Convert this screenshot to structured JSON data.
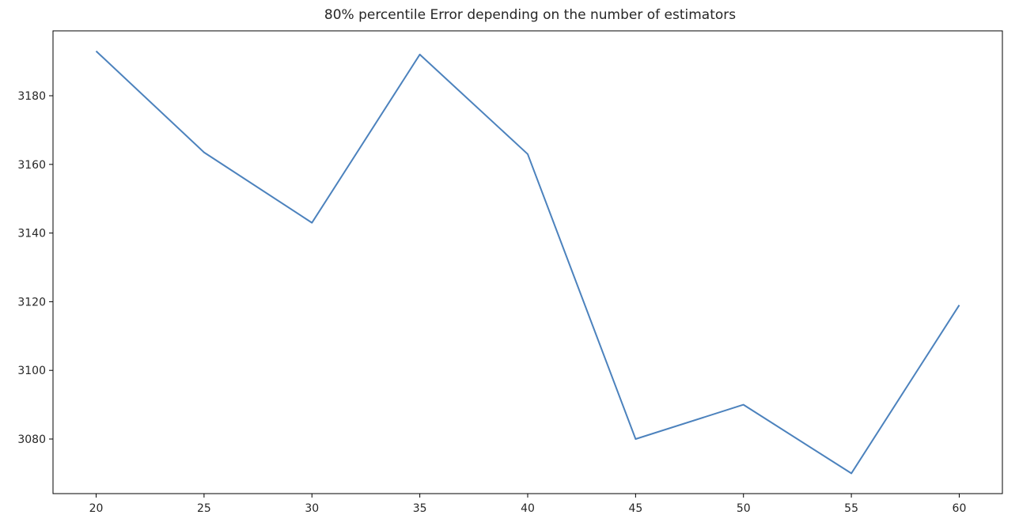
{
  "chart_data": {
    "type": "line",
    "title": "80% percentile Error depending on the number of estimators",
    "xlabel": "",
    "ylabel": "",
    "x": [
      20,
      25,
      30,
      35,
      40,
      45,
      50,
      55,
      60
    ],
    "series": [
      {
        "values": [
          3193,
          3163.5,
          3143,
          3192,
          3163,
          3080,
          3090,
          3070,
          3119
        ],
        "color": "#4c82bd"
      }
    ],
    "x_ticks": [
      "20",
      "25",
      "30",
      "35",
      "40",
      "45",
      "50",
      "55",
      "60"
    ],
    "y_ticks": [
      "3080",
      "3100",
      "3120",
      "3140",
      "3160",
      "3180"
    ],
    "xlim": [
      18,
      62
    ],
    "ylim": [
      3064.1,
      3198.9
    ],
    "grid": false,
    "legend": "none"
  }
}
